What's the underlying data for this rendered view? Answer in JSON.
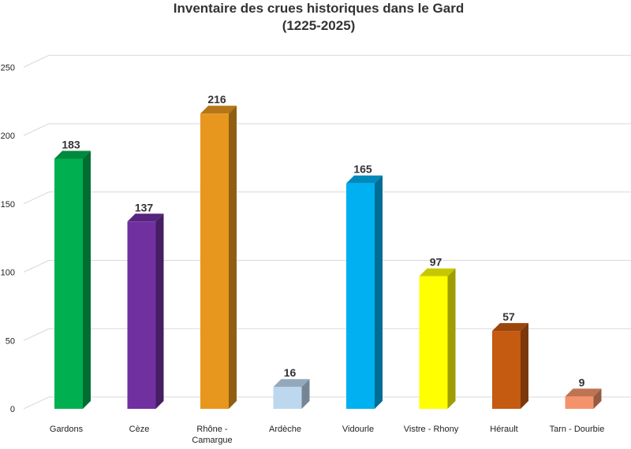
{
  "chart_data": {
    "type": "bar",
    "title": [
      "Inventaire des crues historiques dans le Gard",
      "(1225-2025)"
    ],
    "xlabel": "",
    "ylabel": "",
    "ylim": [
      0,
      250
    ],
    "yticks": [
      0,
      50,
      100,
      150,
      200,
      250
    ],
    "yticklabels": [
      "0",
      "50",
      "100",
      "150",
      "200",
      "250"
    ],
    "grid": true,
    "categories": [
      [
        "Gardons"
      ],
      [
        "Cèze"
      ],
      [
        "Rhône -",
        "Camargue"
      ],
      [
        "Ardèche"
      ],
      [
        "Vidourle"
      ],
      [
        "Vistre - Rhony"
      ],
      [
        "Hérault"
      ],
      [
        "Tarn - Dourbie"
      ]
    ],
    "values": [
      183,
      137,
      216,
      16,
      165,
      97,
      57,
      9
    ],
    "colors": [
      "#00b050",
      "#7030a0",
      "#e8971e",
      "#bdd7ee",
      "#00b0f0",
      "#ffff00",
      "#c55a11",
      "#f4936b"
    ]
  }
}
